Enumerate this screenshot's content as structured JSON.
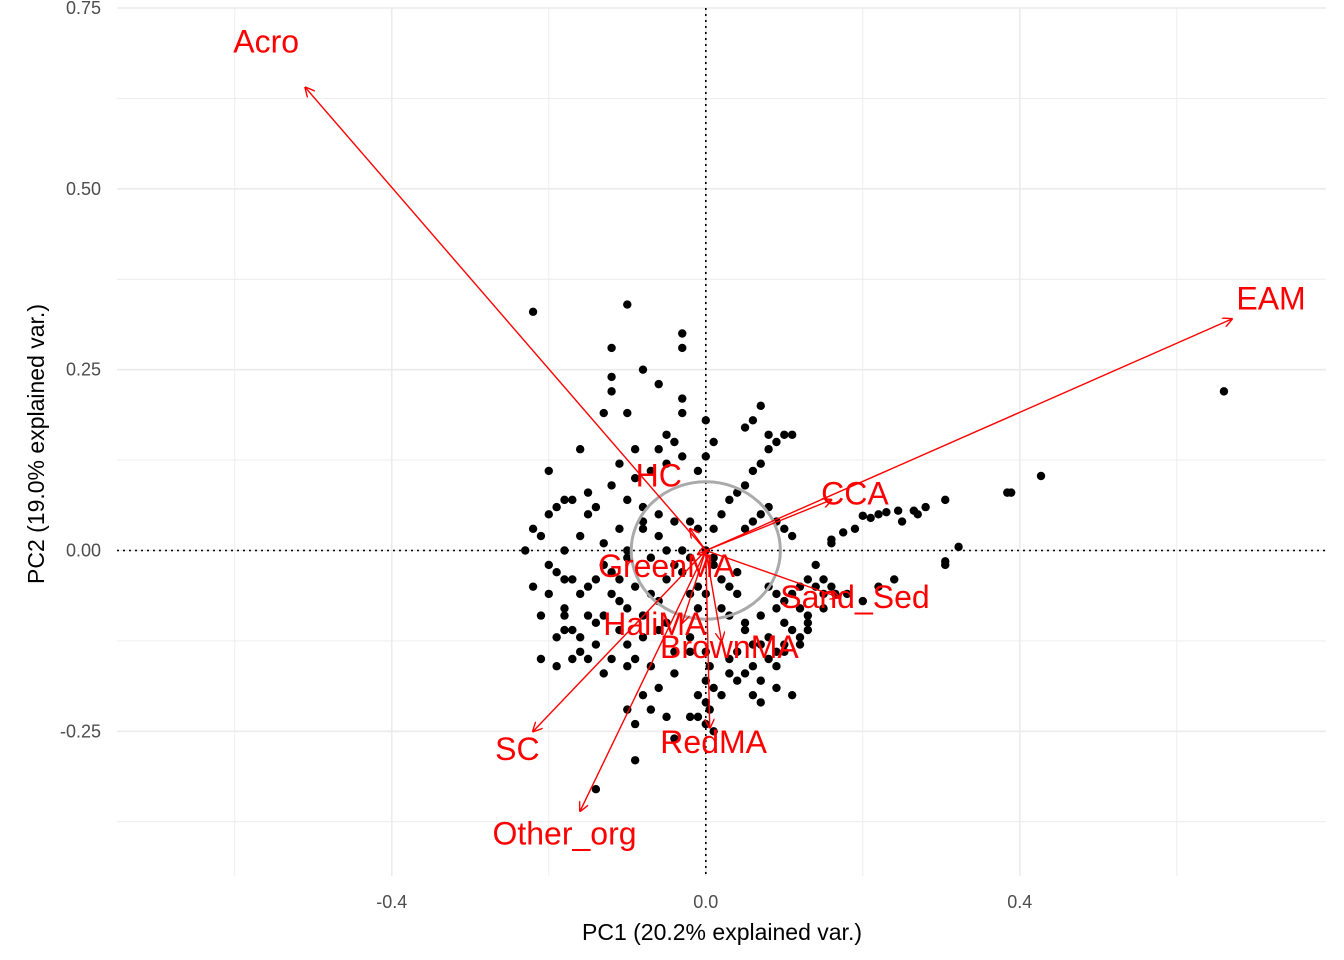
{
  "chart_data": {
    "type": "scatter",
    "subtype": "pca-biplot",
    "xlabel": "PC1 (20.2% explained var.)",
    "ylabel": "PC2 (19.0% explained var.)",
    "xlim": [
      -0.75,
      0.79
    ],
    "ylim": [
      -0.45,
      0.75
    ],
    "x_ticks": [
      -0.4,
      0.0,
      0.4
    ],
    "y_ticks": [
      -0.25,
      0.0,
      0.25,
      0.5,
      0.75
    ],
    "x_tick_labels": [
      "-0.4",
      "0.0",
      "0.4"
    ],
    "y_tick_labels": [
      "-0.25",
      "0.00",
      "0.25",
      "0.50",
      "0.75"
    ],
    "grid": true,
    "reference_lines": {
      "x": 0,
      "y": 0,
      "style": "dotted"
    },
    "colors": {
      "points": "#000000",
      "loadings": "#ff0000",
      "circle": "#aaaaaa",
      "grid": "#ebebeb"
    },
    "circle": {
      "center": [
        0,
        0
      ],
      "radius": 0.095
    },
    "loadings": [
      {
        "name": "Acro",
        "x": -0.51,
        "y": 0.64,
        "label_x": -0.56,
        "label_y": 0.7
      },
      {
        "name": "EAM",
        "x": 0.67,
        "y": 0.32,
        "label_x": 0.72,
        "label_y": 0.345
      },
      {
        "name": "HC",
        "x": -0.02,
        "y": 0.03,
        "label_x": -0.06,
        "label_y": 0.1
      },
      {
        "name": "CCA",
        "x": 0.16,
        "y": 0.07,
        "label_x": 0.19,
        "label_y": 0.075
      },
      {
        "name": "GreenMA",
        "x": -0.01,
        "y": -0.005,
        "label_x": -0.05,
        "label_y": -0.025
      },
      {
        "name": "Sand_Sed",
        "x": 0.17,
        "y": -0.065,
        "label_x": 0.19,
        "label_y": -0.068
      },
      {
        "name": "HaliMA",
        "x": -0.03,
        "y": -0.1,
        "label_x": -0.065,
        "label_y": -0.105
      },
      {
        "name": "BrownMA",
        "x": 0.02,
        "y": -0.125,
        "label_x": 0.03,
        "label_y": -0.137
      },
      {
        "name": "RedMA",
        "x": 0.005,
        "y": -0.245,
        "label_x": 0.01,
        "label_y": -0.268
      },
      {
        "name": "SC",
        "x": -0.22,
        "y": -0.25,
        "label_x": -0.24,
        "label_y": -0.278
      },
      {
        "name": "Other_org",
        "x": -0.16,
        "y": -0.36,
        "label_x": -0.18,
        "label_y": -0.395
      }
    ],
    "points": [
      [
        0.66,
        0.22
      ],
      [
        0.427,
        0.103
      ],
      [
        0.389,
        0.08
      ],
      [
        0.384,
        0.08
      ],
      [
        0.322,
        0.005
      ],
      [
        0.305,
        -0.02
      ],
      [
        0.305,
        -0.015
      ],
      [
        0.305,
        0.07
      ],
      [
        0.265,
        0.055
      ],
      [
        0.245,
        0.055
      ],
      [
        0.23,
        0.053
      ],
      [
        0.22,
        0.05
      ],
      [
        0.21,
        0.045
      ],
      [
        0.2,
        0.048
      ],
      [
        0.19,
        0.03
      ],
      [
        0.175,
        0.025
      ],
      [
        0.16,
        0.015
      ],
      [
        0.16,
        0.01
      ],
      [
        0.14,
        -0.02
      ],
      [
        0.15,
        -0.04
      ],
      [
        0.16,
        -0.05
      ],
      [
        0.165,
        -0.06
      ],
      [
        0.15,
        -0.06
      ],
      [
        0.14,
        -0.05
      ],
      [
        0.13,
        -0.04
      ],
      [
        0.12,
        -0.05
      ],
      [
        0.12,
        -0.08
      ],
      [
        0.13,
        -0.09
      ],
      [
        0.11,
        -0.06
      ],
      [
        0.1,
        -0.07
      ],
      [
        0.09,
        -0.06
      ],
      [
        0.08,
        -0.05
      ],
      [
        0.09,
        -0.08
      ],
      [
        0.1,
        -0.1
      ],
      [
        0.11,
        -0.11
      ],
      [
        0.12,
        -0.12
      ],
      [
        0.1,
        -0.13
      ],
      [
        0.09,
        -0.14
      ],
      [
        0.08,
        -0.12
      ],
      [
        0.07,
        -0.09
      ],
      [
        0.08,
        -0.15
      ],
      [
        0.07,
        -0.18
      ],
      [
        0.06,
        -0.16
      ],
      [
        0.05,
        -0.17
      ],
      [
        0.04,
        -0.18
      ],
      [
        0.03,
        -0.17
      ],
      [
        0.02,
        -0.2
      ],
      [
        0.01,
        -0.19
      ],
      [
        0.005,
        -0.16
      ],
      [
        0.0,
        -0.18
      ],
      [
        0.005,
        -0.22
      ],
      [
        -0.01,
        -0.23
      ],
      [
        -0.02,
        -0.23
      ],
      [
        0.0,
        -0.21
      ],
      [
        0.06,
        -0.13
      ],
      [
        0.05,
        -0.11
      ],
      [
        0.03,
        -0.09
      ],
      [
        0.02,
        -0.08
      ],
      [
        0.0,
        -0.06
      ],
      [
        -0.01,
        -0.08
      ],
      [
        0.11,
        -0.2
      ],
      [
        0.07,
        -0.13
      ],
      [
        0.04,
        -0.14
      ],
      [
        0.0,
        -0.14
      ],
      [
        -0.02,
        -0.12
      ],
      [
        -0.05,
        -0.1
      ],
      [
        -0.08,
        -0.09
      ],
      [
        -0.1,
        -0.08
      ],
      [
        -0.12,
        -0.06
      ],
      [
        -0.14,
        -0.04
      ],
      [
        -0.16,
        -0.06
      ],
      [
        -0.17,
        -0.04
      ],
      [
        -0.18,
        -0.08
      ],
      [
        -0.19,
        -0.03
      ],
      [
        -0.2,
        -0.02
      ],
      [
        -0.21,
        -0.09
      ],
      [
        -0.18,
        -0.11
      ],
      [
        -0.16,
        -0.12
      ],
      [
        -0.14,
        -0.13
      ],
      [
        -0.15,
        -0.15
      ],
      [
        -0.12,
        -0.15
      ],
      [
        -0.1,
        -0.13
      ],
      [
        -0.08,
        -0.12
      ],
      [
        -0.06,
        -0.11
      ],
      [
        -0.21,
        -0.15
      ],
      [
        -0.1,
        -0.22
      ],
      [
        -0.07,
        -0.22
      ],
      [
        -0.09,
        -0.24
      ],
      [
        -0.05,
        -0.23
      ],
      [
        -0.04,
        -0.26
      ],
      [
        -0.09,
        -0.29
      ],
      [
        -0.14,
        -0.33
      ],
      [
        -0.16,
        -0.14
      ],
      [
        -0.19,
        -0.12
      ],
      [
        -0.17,
        -0.11
      ],
      [
        -0.2,
        -0.06
      ],
      [
        -0.22,
        -0.05
      ],
      [
        -0.18,
        -0.04
      ],
      [
        -0.15,
        -0.05
      ],
      [
        -0.13,
        -0.02
      ],
      [
        -0.11,
        -0.04
      ],
      [
        -0.09,
        -0.05
      ],
      [
        -0.07,
        -0.06
      ],
      [
        -0.05,
        -0.04
      ],
      [
        -0.04,
        -0.02
      ],
      [
        -0.03,
        0.0
      ],
      [
        -0.02,
        -0.01
      ],
      [
        -0.06,
        0.02
      ],
      [
        -0.08,
        0.03
      ],
      [
        -0.1,
        0.0
      ],
      [
        -0.11,
        0.03
      ],
      [
        -0.13,
        0.01
      ],
      [
        -0.14,
        0.06
      ],
      [
        -0.15,
        0.05
      ],
      [
        -0.16,
        0.02
      ],
      [
        -0.18,
        0.0
      ],
      [
        -0.19,
        0.06
      ],
      [
        -0.2,
        0.05
      ],
      [
        -0.21,
        0.02
      ],
      [
        -0.17,
        0.07
      ],
      [
        -0.15,
        0.08
      ],
      [
        -0.12,
        0.09
      ],
      [
        -0.1,
        0.07
      ],
      [
        -0.08,
        0.06
      ],
      [
        -0.06,
        0.05
      ],
      [
        -0.04,
        0.04
      ],
      [
        -0.02,
        0.04
      ],
      [
        -0.01,
        0.03
      ],
      [
        0.01,
        0.03
      ],
      [
        0.02,
        0.05
      ],
      [
        0.03,
        0.07
      ],
      [
        0.04,
        0.08
      ],
      [
        0.05,
        0.09
      ],
      [
        0.06,
        0.11
      ],
      [
        0.07,
        0.12
      ],
      [
        0.08,
        0.14
      ],
      [
        0.09,
        0.15
      ],
      [
        0.1,
        0.16
      ],
      [
        0.11,
        0.16
      ],
      [
        0.08,
        0.16
      ],
      [
        0.06,
        0.18
      ],
      [
        0.05,
        0.17
      ],
      [
        0.07,
        0.2
      ],
      [
        0.0,
        0.18
      ],
      [
        0.01,
        0.15
      ],
      [
        0.0,
        0.13
      ],
      [
        -0.01,
        0.11
      ],
      [
        -0.03,
        0.13
      ],
      [
        -0.04,
        0.15
      ],
      [
        -0.05,
        0.16
      ],
      [
        -0.06,
        0.14
      ],
      [
        -0.05,
        0.12
      ],
      [
        -0.07,
        0.11
      ],
      [
        -0.09,
        0.1
      ],
      [
        -0.11,
        0.12
      ],
      [
        -0.09,
        0.14
      ],
      [
        -0.1,
        0.19
      ],
      [
        -0.12,
        0.24
      ],
      [
        -0.13,
        0.19
      ],
      [
        -0.06,
        0.23
      ],
      [
        -0.08,
        0.25
      ],
      [
        -0.03,
        0.21
      ],
      [
        -0.03,
        0.19
      ],
      [
        -0.03,
        0.28
      ],
      [
        -0.03,
        0.3
      ],
      [
        -0.1,
        0.34
      ],
      [
        -0.12,
        0.28
      ],
      [
        -0.12,
        0.22
      ],
      [
        -0.22,
        0.33
      ],
      [
        -0.2,
        0.11
      ],
      [
        -0.18,
        0.07
      ],
      [
        -0.16,
        0.14
      ],
      [
        -0.08,
        0.04
      ],
      [
        -0.04,
        -0.14
      ],
      [
        -0.02,
        -0.14
      ],
      [
        -0.06,
        -0.07
      ],
      [
        -0.11,
        -0.07
      ],
      [
        -0.13,
        -0.09
      ],
      [
        -0.15,
        -0.09
      ],
      [
        -0.17,
        -0.15
      ],
      [
        -0.19,
        -0.16
      ],
      [
        0.09,
        -0.19
      ],
      [
        0.12,
        -0.13
      ],
      [
        0.13,
        -0.11
      ],
      [
        0.05,
        -0.1
      ],
      [
        0.04,
        -0.06
      ],
      [
        -0.01,
        -0.05
      ],
      [
        -0.02,
        -0.06
      ],
      [
        0.02,
        -0.04
      ],
      [
        0.01,
        -0.02
      ],
      [
        -0.22,
        0.03
      ],
      [
        -0.23,
        0.0
      ],
      [
        -0.12,
        -0.03
      ],
      [
        -0.1,
        -0.01
      ],
      [
        -0.07,
        -0.01
      ],
      [
        -0.05,
        0.0
      ],
      [
        -0.03,
        -0.03
      ],
      [
        0.0,
        0.0
      ],
      [
        0.01,
        -0.01
      ],
      [
        0.05,
        0.03
      ],
      [
        0.06,
        0.04
      ],
      [
        0.07,
        0.05
      ],
      [
        0.08,
        0.06
      ],
      [
        0.09,
        0.04
      ],
      [
        0.1,
        0.03
      ],
      [
        0.11,
        0.02
      ],
      [
        0.04,
        -0.03
      ],
      [
        0.03,
        -0.05
      ],
      [
        -0.08,
        -0.2
      ],
      [
        -0.06,
        -0.19
      ],
      [
        -0.01,
        -0.2
      ],
      [
        0.0,
        -0.24
      ],
      [
        0.01,
        -0.25
      ],
      [
        -0.1,
        -0.16
      ],
      [
        -0.13,
        -0.17
      ],
      [
        -0.18,
        -0.09
      ],
      [
        -0.14,
        -0.1
      ],
      [
        -0.11,
        -0.11
      ],
      [
        -0.09,
        -0.15
      ],
      [
        -0.07,
        -0.16
      ],
      [
        -0.04,
        -0.17
      ],
      [
        0.03,
        -0.15
      ],
      [
        0.06,
        -0.2
      ],
      [
        0.07,
        -0.21
      ],
      [
        0.09,
        -0.16
      ],
      [
        0.1,
        -0.14
      ],
      [
        0.13,
        -0.1
      ],
      [
        0.15,
        -0.08
      ],
      [
        0.18,
        -0.06
      ],
      [
        0.2,
        -0.07
      ],
      [
        0.22,
        -0.05
      ],
      [
        0.24,
        -0.04
      ],
      [
        0.25,
        0.04
      ],
      [
        0.27,
        0.05
      ],
      [
        0.28,
        0.06
      ]
    ]
  }
}
